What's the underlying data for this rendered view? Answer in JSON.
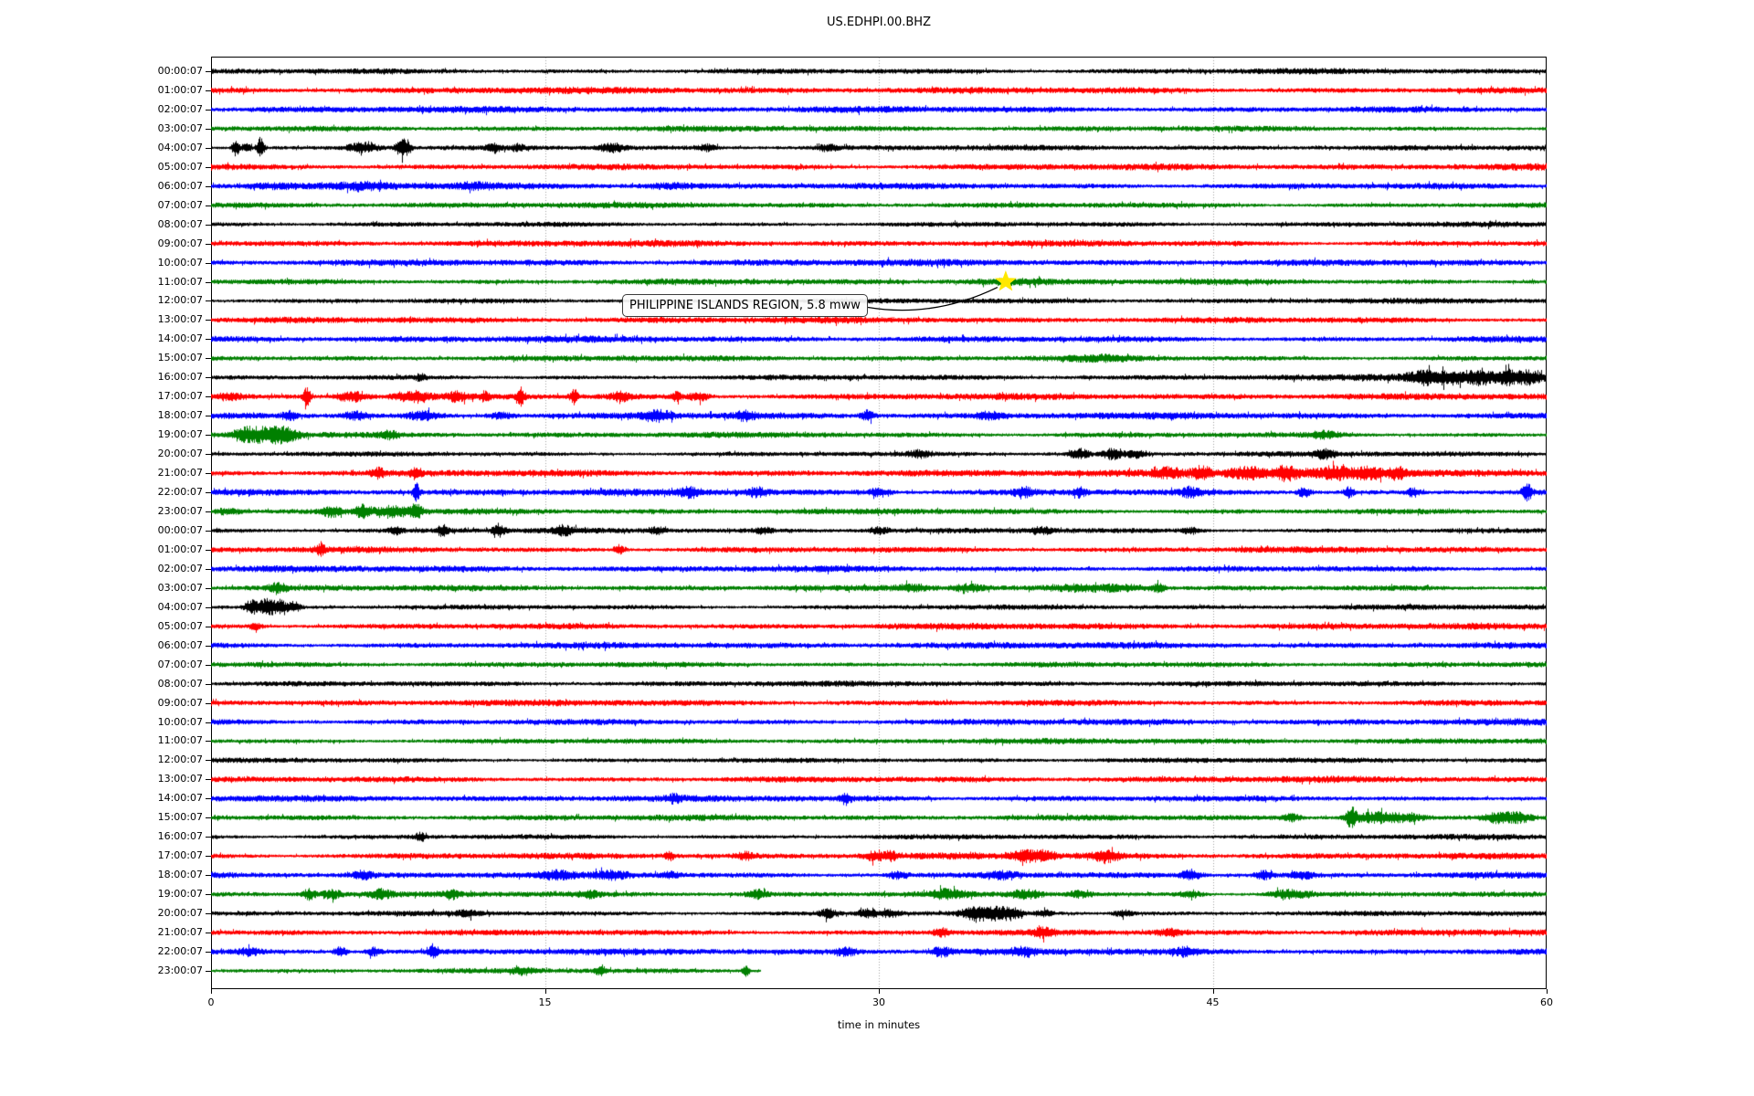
{
  "header": {
    "title": "US.EDHPI.00.BHZ"
  },
  "axes": {
    "xlabel": "time in minutes",
    "x_ticks": [
      "0",
      "15",
      "30",
      "45",
      "60"
    ],
    "x_range": [
      0,
      60
    ],
    "gridline_minutes": [
      15,
      30,
      45
    ]
  },
  "annotation": {
    "text": "PHILIPPINE ISLANDS REGION, 5.8 mww",
    "star_row_label": "11:00:07",
    "star_row_index": 11,
    "star_minute": 35.7,
    "star_color": "#ffe800",
    "star_icon": "star-marker"
  },
  "palette": {
    "black": "#000000",
    "red": "#ff0000",
    "blue": "#0000ff",
    "green": "#008000",
    "grid": "#a0a0a0",
    "axis": "#000000"
  },
  "chart_data": {
    "type": "line",
    "variant": "helicorder-seismogram",
    "title": "US.EDHPI.00.BHZ",
    "xlabel": "time in minutes",
    "xlim": [
      0,
      60
    ],
    "minutes_per_row": 60,
    "row_color_cycle": [
      "black",
      "red",
      "blue",
      "green"
    ],
    "note": "events = [minute, amplitude_px, width_minutes]; noise = background half-amplitude px",
    "rows": [
      {
        "label": "00:00:07",
        "color": "black",
        "noise": 2.6,
        "events": [],
        "end": 60
      },
      {
        "label": "01:00:07",
        "color": "red",
        "noise": 3.0,
        "events": [],
        "end": 60
      },
      {
        "label": "02:00:07",
        "color": "blue",
        "noise": 3.0,
        "events": [],
        "end": 60
      },
      {
        "label": "03:00:07",
        "color": "green",
        "noise": 2.6,
        "events": [],
        "end": 60
      },
      {
        "label": "04:00:07",
        "color": "black",
        "noise": 2.4,
        "events": [
          [
            1.1,
            9,
            0.12
          ],
          [
            1.6,
            6,
            0.12
          ],
          [
            2.2,
            11,
            0.12
          ],
          [
            6.8,
            5,
            0.5
          ],
          [
            8.5,
            8,
            0.18
          ],
          [
            8.8,
            6,
            0.15
          ],
          [
            12.7,
            4,
            0.2
          ],
          [
            13.8,
            3,
            0.2
          ],
          [
            18.0,
            4,
            0.4
          ],
          [
            22.3,
            3,
            0.3
          ],
          [
            27.7,
            3,
            0.3
          ]
        ],
        "end": 60
      },
      {
        "label": "05:00:07",
        "color": "red",
        "noise": 3.0,
        "events": [],
        "end": 60
      },
      {
        "label": "06:00:07",
        "color": "blue",
        "noise": 3.0,
        "events": [
          [
            2.7,
            2,
            0.8
          ],
          [
            6.8,
            2,
            0.8
          ],
          [
            11.9,
            2,
            0.6
          ],
          [
            20.6,
            2,
            0.8
          ]
        ],
        "end": 60
      },
      {
        "label": "07:00:07",
        "color": "green",
        "noise": 2.6,
        "events": [],
        "end": 60
      },
      {
        "label": "08:00:07",
        "color": "black",
        "noise": 2.4,
        "events": [],
        "end": 60
      },
      {
        "label": "09:00:07",
        "color": "red",
        "noise": 2.9,
        "events": [],
        "end": 60
      },
      {
        "label": "10:00:07",
        "color": "blue",
        "noise": 3.0,
        "events": [],
        "end": 60
      },
      {
        "label": "11:00:07",
        "color": "green",
        "noise": 2.6,
        "events": [
          [
            35.7,
            2,
            1.5
          ]
        ],
        "end": 60
      },
      {
        "label": "12:00:07",
        "color": "black",
        "noise": 2.4,
        "events": [],
        "end": 60
      },
      {
        "label": "13:00:07",
        "color": "red",
        "noise": 2.9,
        "events": [],
        "end": 60
      },
      {
        "label": "14:00:07",
        "color": "blue",
        "noise": 3.0,
        "events": [],
        "end": 60
      },
      {
        "label": "15:00:07",
        "color": "green",
        "noise": 2.6,
        "events": [
          [
            40,
            2,
            1.0
          ]
        ],
        "end": 60
      },
      {
        "label": "16:00:07",
        "color": "black",
        "noise": 2.4,
        "events": [
          [
            9.4,
            3,
            0.15
          ],
          [
            54.5,
            5,
            0.5
          ],
          [
            55.8,
            4,
            0.5
          ],
          [
            56.5,
            3,
            3.0
          ],
          [
            57.0,
            4,
            0.4
          ],
          [
            58.2,
            5,
            0.3
          ],
          [
            59.2,
            5,
            0.4
          ]
        ],
        "end": 60
      },
      {
        "label": "17:00:07",
        "color": "red",
        "noise": 2.9,
        "events": [
          [
            0.8,
            3,
            0.6
          ],
          [
            4.3,
            9,
            0.12
          ],
          [
            6.3,
            5,
            0.5
          ],
          [
            9.0,
            5,
            0.6
          ],
          [
            11.0,
            4,
            0.3
          ],
          [
            12.3,
            4,
            0.15
          ],
          [
            13.9,
            8,
            0.12
          ],
          [
            16.3,
            7,
            0.12
          ],
          [
            18.4,
            4,
            0.3
          ],
          [
            20.9,
            4,
            0.15
          ],
          [
            21.9,
            4,
            0.3
          ]
        ],
        "end": 60
      },
      {
        "label": "18:00:07",
        "color": "blue",
        "noise": 3.0,
        "events": [
          [
            3.5,
            5,
            0.2
          ],
          [
            6.5,
            4,
            0.4
          ],
          [
            9.5,
            4,
            0.5
          ],
          [
            13.0,
            3,
            0.4
          ],
          [
            20.0,
            5,
            0.5
          ],
          [
            24.0,
            4,
            0.3
          ],
          [
            29.5,
            5,
            0.2
          ],
          [
            35.0,
            3,
            0.4
          ]
        ],
        "end": 60
      },
      {
        "label": "19:00:07",
        "color": "green",
        "noise": 2.6,
        "events": [
          [
            1.6,
            6,
            0.4
          ],
          [
            2.6,
            7,
            0.5
          ],
          [
            3.4,
            5,
            0.4
          ],
          [
            8.0,
            3,
            0.3
          ],
          [
            50.0,
            3,
            0.5
          ]
        ],
        "end": 60
      },
      {
        "label": "20:00:07",
        "color": "black",
        "noise": 2.4,
        "events": [
          [
            31.8,
            3,
            0.3
          ],
          [
            39.0,
            5,
            0.3
          ],
          [
            40.5,
            5,
            0.3
          ],
          [
            41.5,
            4,
            0.25
          ],
          [
            50.0,
            4,
            0.3
          ]
        ],
        "end": 60
      },
      {
        "label": "21:00:07",
        "color": "red",
        "noise": 2.9,
        "events": [
          [
            7.5,
            4,
            0.2
          ],
          [
            9.2,
            6,
            0.15
          ],
          [
            43.0,
            4,
            0.4
          ],
          [
            44.5,
            5,
            0.3
          ],
          [
            46.5,
            4,
            0.5
          ],
          [
            48.0,
            3,
            5.0
          ],
          [
            48.3,
            5,
            0.3
          ],
          [
            50.5,
            4,
            0.4
          ],
          [
            52.0,
            4,
            0.4
          ],
          [
            53.3,
            4,
            0.3
          ]
        ],
        "end": 60
      },
      {
        "label": "22:00:07",
        "color": "blue",
        "noise": 3.0,
        "events": [
          [
            9.2,
            9,
            0.1
          ],
          [
            21.5,
            4,
            0.3
          ],
          [
            24.5,
            4,
            0.3
          ],
          [
            30.0,
            4,
            0.3
          ],
          [
            36.5,
            4,
            0.3
          ],
          [
            39.0,
            4,
            0.2
          ],
          [
            44.0,
            4,
            0.3
          ],
          [
            49.1,
            5,
            0.2
          ],
          [
            51.1,
            5,
            0.15
          ],
          [
            54.0,
            4,
            0.2
          ],
          [
            59.1,
            8,
            0.15
          ]
        ],
        "end": 60
      },
      {
        "label": "23:00:07",
        "color": "green",
        "noise": 2.6,
        "events": [
          [
            0.7,
            3,
            0.4
          ],
          [
            5.4,
            5,
            0.3
          ],
          [
            6.8,
            6,
            0.3
          ],
          [
            8.2,
            5,
            0.5
          ],
          [
            9.2,
            6,
            0.2
          ]
        ],
        "end": 60
      },
      {
        "label": "00:00:07",
        "color": "black",
        "noise": 2.4,
        "events": [
          [
            8.3,
            4,
            0.2
          ],
          [
            10.4,
            5,
            0.2
          ],
          [
            12.9,
            6,
            0.18
          ],
          [
            15.8,
            4,
            0.3
          ],
          [
            20.0,
            3,
            0.3
          ],
          [
            24.8,
            3,
            0.25
          ],
          [
            30.0,
            3,
            0.3
          ],
          [
            37.3,
            3,
            0.4
          ],
          [
            44.0,
            3,
            0.3
          ]
        ],
        "end": 60
      },
      {
        "label": "01:00:07",
        "color": "red",
        "noise": 2.9,
        "events": [
          [
            4.9,
            5,
            0.15
          ],
          [
            18.3,
            5,
            0.15
          ]
        ],
        "end": 60
      },
      {
        "label": "02:00:07",
        "color": "blue",
        "noise": 2.9,
        "events": [],
        "end": 60
      },
      {
        "label": "03:00:07",
        "color": "green",
        "noise": 2.6,
        "events": [
          [
            3.0,
            4,
            0.3
          ],
          [
            31.5,
            3,
            0.5
          ],
          [
            34.0,
            3,
            0.5
          ],
          [
            38.9,
            3,
            1.0
          ],
          [
            41.0,
            3,
            1.0
          ],
          [
            42.6,
            4,
            0.2
          ]
        ],
        "end": 60
      },
      {
        "label": "04:00:07",
        "color": "black",
        "noise": 2.4,
        "events": [
          [
            1.8,
            7,
            0.2
          ],
          [
            2.5,
            9,
            0.25
          ],
          [
            3.1,
            6,
            0.2
          ],
          [
            3.7,
            5,
            0.2
          ]
        ],
        "end": 60
      },
      {
        "label": "05:00:07",
        "color": "red",
        "noise": 2.9,
        "events": [
          [
            2.0,
            3,
            0.2
          ]
        ],
        "end": 60
      },
      {
        "label": "06:00:07",
        "color": "blue",
        "noise": 2.9,
        "events": [],
        "end": 60
      },
      {
        "label": "07:00:07",
        "color": "green",
        "noise": 2.6,
        "events": [],
        "end": 60
      },
      {
        "label": "08:00:07",
        "color": "black",
        "noise": 2.5,
        "events": [],
        "end": 60
      },
      {
        "label": "09:00:07",
        "color": "red",
        "noise": 2.9,
        "events": [],
        "end": 60
      },
      {
        "label": "10:00:07",
        "color": "blue",
        "noise": 2.9,
        "events": [],
        "end": 60
      },
      {
        "label": "11:00:07",
        "color": "green",
        "noise": 2.6,
        "events": [],
        "end": 60
      },
      {
        "label": "12:00:07",
        "color": "black",
        "noise": 2.4,
        "events": [],
        "end": 60
      },
      {
        "label": "13:00:07",
        "color": "red",
        "noise": 2.9,
        "events": [],
        "end": 60
      },
      {
        "label": "14:00:07",
        "color": "blue",
        "noise": 2.9,
        "events": [
          [
            20.8,
            3,
            0.2
          ],
          [
            28.5,
            5,
            0.15
          ]
        ],
        "end": 60
      },
      {
        "label": "15:00:07",
        "color": "green",
        "noise": 2.6,
        "events": [
          [
            48.5,
            3,
            0.3
          ],
          [
            51.2,
            10,
            0.15
          ],
          [
            51.8,
            4,
            0.6
          ],
          [
            52.8,
            4,
            0.5
          ],
          [
            53.8,
            3,
            0.5
          ],
          [
            57.8,
            5,
            0.5
          ],
          [
            58.8,
            4,
            0.4
          ]
        ],
        "end": 60
      },
      {
        "label": "16:00:07",
        "color": "black",
        "noise": 2.4,
        "events": [
          [
            9.4,
            4,
            0.15
          ]
        ],
        "end": 60
      },
      {
        "label": "17:00:07",
        "color": "red",
        "noise": 2.9,
        "events": [
          [
            20.6,
            4,
            0.15
          ],
          [
            24.0,
            3,
            0.3
          ],
          [
            29.8,
            4,
            0.3
          ],
          [
            30.5,
            4,
            0.2
          ],
          [
            36.6,
            5,
            0.4
          ],
          [
            37.5,
            4,
            0.3
          ],
          [
            40.2,
            5,
            0.4
          ]
        ],
        "end": 60
      },
      {
        "label": "18:00:07",
        "color": "blue",
        "noise": 2.9,
        "events": [
          [
            6.8,
            4,
            0.3
          ],
          [
            15.5,
            3,
            0.5
          ],
          [
            18.0,
            3,
            0.5
          ],
          [
            20.6,
            3,
            0.3
          ],
          [
            30.8,
            3,
            0.3
          ],
          [
            35.5,
            3,
            0.5
          ],
          [
            44.0,
            5,
            0.3
          ],
          [
            47.3,
            4,
            0.3
          ],
          [
            49.0,
            3,
            0.4
          ]
        ],
        "end": 60
      },
      {
        "label": "19:00:07",
        "color": "green",
        "noise": 2.6,
        "events": [
          [
            4.4,
            5,
            0.2
          ],
          [
            5.4,
            4,
            0.3
          ],
          [
            7.6,
            4,
            0.3
          ],
          [
            10.8,
            4,
            0.2
          ],
          [
            17.0,
            3,
            0.3
          ],
          [
            24.5,
            4,
            0.3
          ],
          [
            33.1,
            4,
            0.5
          ],
          [
            36.6,
            4,
            0.5
          ],
          [
            39.0,
            3,
            0.4
          ],
          [
            44.0,
            3,
            0.4
          ],
          [
            48.4,
            4,
            0.6
          ]
        ],
        "end": 60
      },
      {
        "label": "20:00:07",
        "color": "black",
        "noise": 2.4,
        "events": [
          [
            11.5,
            3,
            0.3
          ],
          [
            27.7,
            4,
            0.25
          ],
          [
            29.5,
            4,
            0.3
          ],
          [
            30.5,
            3,
            0.3
          ],
          [
            34.3,
            6,
            0.4
          ],
          [
            35.2,
            6,
            0.4
          ],
          [
            36.0,
            5,
            0.3
          ],
          [
            37.4,
            3,
            0.3
          ],
          [
            41.0,
            3,
            0.3
          ]
        ],
        "end": 60
      },
      {
        "label": "21:00:07",
        "color": "red",
        "noise": 2.9,
        "events": [
          [
            32.8,
            4,
            0.25
          ],
          [
            37.4,
            4,
            0.3
          ],
          [
            43.0,
            3,
            0.4
          ]
        ],
        "end": 60
      },
      {
        "label": "22:00:07",
        "color": "blue",
        "noise": 2.9,
        "events": [
          [
            1.7,
            3,
            0.3
          ],
          [
            5.8,
            5,
            0.2
          ],
          [
            7.3,
            4,
            0.25
          ],
          [
            10.0,
            6,
            0.15
          ],
          [
            28.5,
            4,
            0.3
          ],
          [
            32.8,
            4,
            0.3
          ],
          [
            36.5,
            3,
            0.4
          ],
          [
            43.8,
            4,
            0.3
          ]
        ],
        "end": 60
      },
      {
        "label": "23:00:07",
        "color": "green",
        "noise": 2.6,
        "events": [
          [
            14.0,
            3,
            0.3
          ],
          [
            17.5,
            5,
            0.15
          ],
          [
            24.0,
            5,
            0.12
          ]
        ],
        "end": 24.7
      }
    ]
  }
}
